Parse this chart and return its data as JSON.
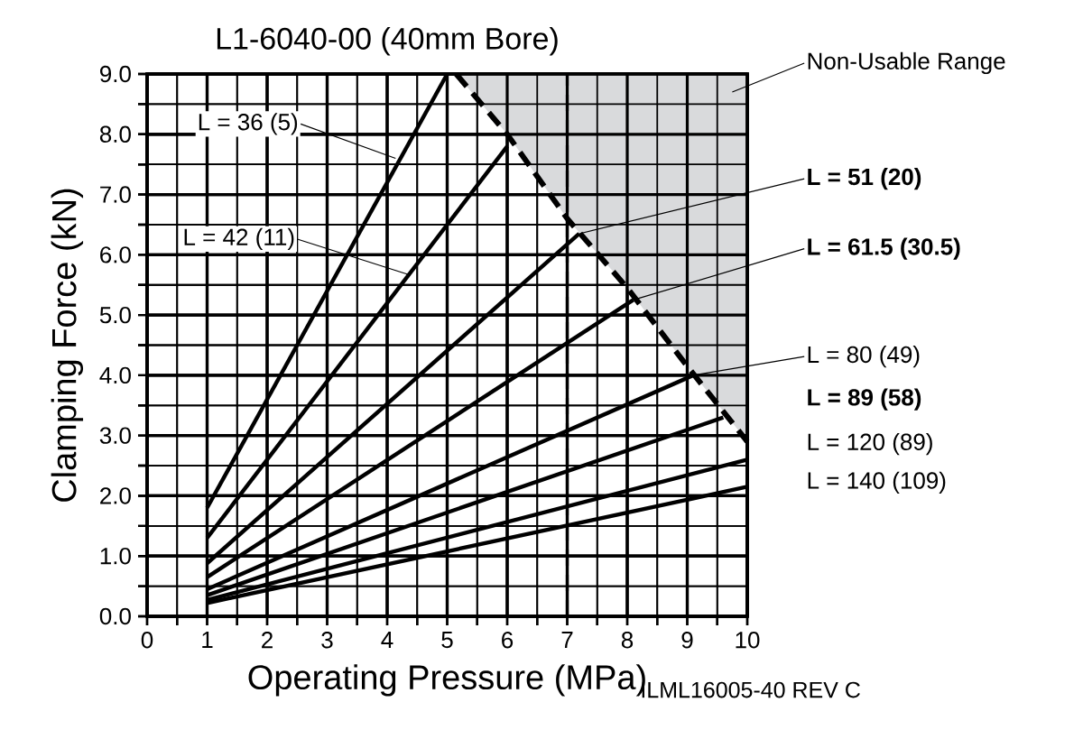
{
  "chart_data": {
    "type": "line",
    "title": "L1-6040-00 (40mm Bore)",
    "xlabel": "Operating Pressure (MPa)",
    "ylabel": "Clamping Force (kN)",
    "xlim": [
      0,
      10
    ],
    "ylim": [
      0,
      9
    ],
    "xticks": [
      0,
      1,
      2,
      3,
      4,
      5,
      6,
      7,
      8,
      9,
      10
    ],
    "yticks": [
      {
        "value": 0,
        "label": "0.0"
      },
      {
        "value": 1,
        "label": "1.0"
      },
      {
        "value": 2,
        "label": "2.0"
      },
      {
        "value": 3,
        "label": "3.0"
      },
      {
        "value": 4,
        "label": "4.0"
      },
      {
        "value": 5,
        "label": "5.0"
      },
      {
        "value": 6,
        "label": "6.0"
      },
      {
        "value": 7,
        "label": "7.0"
      },
      {
        "value": 8,
        "label": "8.0"
      },
      {
        "value": 9,
        "label": "9.0"
      }
    ],
    "grid": true,
    "marker": "none",
    "series": [
      {
        "color": "#000000",
        "x": [
          1,
          5
        ],
        "values": [
          1.8,
          9.0
        ]
      },
      {
        "color": "#000000",
        "x": [
          1,
          6
        ],
        "values": [
          1.3,
          7.8
        ]
      },
      {
        "color": "#000000",
        "x": [
          1,
          7.2
        ],
        "values": [
          0.88,
          6.35
        ]
      },
      {
        "color": "#000000",
        "x": [
          1,
          8.1
        ],
        "values": [
          0.65,
          5.25
        ]
      },
      {
        "color": "#000000",
        "x": [
          1,
          9.1
        ],
        "values": [
          0.45,
          4.0
        ]
      },
      {
        "color": "#000000",
        "x": [
          1,
          9.6
        ],
        "values": [
          0.35,
          3.3
        ]
      },
      {
        "color": "#000000",
        "x": [
          1,
          10
        ],
        "values": [
          0.27,
          2.6
        ]
      },
      {
        "color": "#000000",
        "x": [
          1,
          10
        ],
        "values": [
          0.22,
          2.15
        ]
      },
      {
        "color": "#000000",
        "line_style": "dashed",
        "x": [
          5.15,
          6,
          7,
          8,
          9,
          10
        ],
        "values": [
          9.0,
          8.0,
          6.6,
          5.45,
          4.15,
          2.9
        ],
        "lower": [
          9.0,
          8.0,
          6.6,
          5.45,
          4.15,
          2.9
        ],
        "upper": [
          9,
          9,
          9,
          9,
          9,
          9
        ]
      }
    ],
    "ref_lines": [
      {
        "axis": "x",
        "value": 7,
        "line_style": "dashed"
      }
    ],
    "annotations": [
      {
        "text": "L = 36 (5)",
        "x": 4.14,
        "y": 7.6
      },
      {
        "text": "L = 42 (11)",
        "x": 4.39,
        "y": 5.66
      },
      {
        "text": "**L = 51 (20)**",
        "x": 7.2,
        "y": 6.35
      },
      {
        "text": "**L = 61.5 (30.5)**",
        "x": 8.1,
        "y": 5.25
      },
      {
        "text": "L = 80 (49)",
        "x": 9.1,
        "y": 4.0
      },
      "**L = 89 (58)**",
      "L = 120 (89)",
      "L = 140 (109)",
      "Non-Usable Range",
      "ILML16005-40 REV C"
    ]
  }
}
